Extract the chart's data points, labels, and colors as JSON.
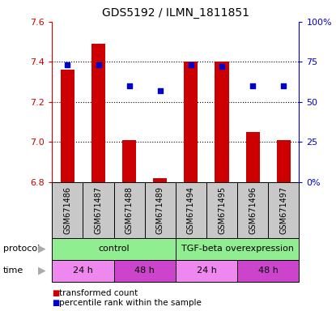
{
  "title": "GDS5192 / ILMN_1811851",
  "samples": [
    "GSM671486",
    "GSM671487",
    "GSM671488",
    "GSM671489",
    "GSM671494",
    "GSM671495",
    "GSM671496",
    "GSM671497"
  ],
  "red_values": [
    7.36,
    7.49,
    7.01,
    6.82,
    7.4,
    7.4,
    7.05,
    7.01
  ],
  "blue_values": [
    73,
    73,
    60,
    57,
    73,
    72,
    60,
    60
  ],
  "y_min": 6.8,
  "y_max": 7.6,
  "y_ticks": [
    6.8,
    7.0,
    7.2,
    7.4,
    7.6
  ],
  "y2_ticks": [
    0,
    25,
    50,
    75,
    100
  ],
  "y2_labels": [
    "0%",
    "25",
    "50",
    "75",
    "100%"
  ],
  "protocol_labels": [
    "control",
    "TGF-beta overexpression"
  ],
  "time_labels": [
    "24 h",
    "48 h",
    "24 h",
    "48 h"
  ],
  "bar_color": "#cc0000",
  "dot_color": "#0000cc",
  "label_bg": "#c8c8c8",
  "protocol_color": "#90ee90",
  "time_light": "#ee88ee",
  "time_dark": "#cc44cc",
  "legend_red": "transformed count",
  "legend_blue": "percentile rank within the sample",
  "left_tick_color": "#cc0000",
  "right_tick_color": "#0000cc",
  "arrow_color": "#aaaaaa"
}
